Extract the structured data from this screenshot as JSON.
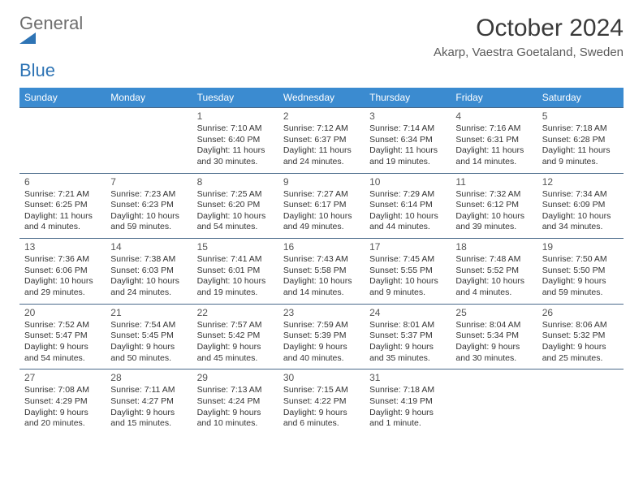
{
  "logo": {
    "part1": "General",
    "part2": "Blue"
  },
  "title": "October 2024",
  "location": "Akarp, Vaestra Goetaland, Sweden",
  "dayNames": [
    "Sunday",
    "Monday",
    "Tuesday",
    "Wednesday",
    "Thursday",
    "Friday",
    "Saturday"
  ],
  "colors": {
    "headerBg": "#3b8bd0",
    "headerText": "#ffffff",
    "rowBorder": "#4a6a8a",
    "logoGray": "#6e6e6e",
    "logoBlue": "#2e74b5"
  },
  "weeks": [
    [
      {
        "num": "",
        "sunrise": "",
        "sunset": "",
        "daylight": ""
      },
      {
        "num": "",
        "sunrise": "",
        "sunset": "",
        "daylight": ""
      },
      {
        "num": "1",
        "sunrise": "Sunrise: 7:10 AM",
        "sunset": "Sunset: 6:40 PM",
        "daylight": "Daylight: 11 hours and 30 minutes."
      },
      {
        "num": "2",
        "sunrise": "Sunrise: 7:12 AM",
        "sunset": "Sunset: 6:37 PM",
        "daylight": "Daylight: 11 hours and 24 minutes."
      },
      {
        "num": "3",
        "sunrise": "Sunrise: 7:14 AM",
        "sunset": "Sunset: 6:34 PM",
        "daylight": "Daylight: 11 hours and 19 minutes."
      },
      {
        "num": "4",
        "sunrise": "Sunrise: 7:16 AM",
        "sunset": "Sunset: 6:31 PM",
        "daylight": "Daylight: 11 hours and 14 minutes."
      },
      {
        "num": "5",
        "sunrise": "Sunrise: 7:18 AM",
        "sunset": "Sunset: 6:28 PM",
        "daylight": "Daylight: 11 hours and 9 minutes."
      }
    ],
    [
      {
        "num": "6",
        "sunrise": "Sunrise: 7:21 AM",
        "sunset": "Sunset: 6:25 PM",
        "daylight": "Daylight: 11 hours and 4 minutes."
      },
      {
        "num": "7",
        "sunrise": "Sunrise: 7:23 AM",
        "sunset": "Sunset: 6:23 PM",
        "daylight": "Daylight: 10 hours and 59 minutes."
      },
      {
        "num": "8",
        "sunrise": "Sunrise: 7:25 AM",
        "sunset": "Sunset: 6:20 PM",
        "daylight": "Daylight: 10 hours and 54 minutes."
      },
      {
        "num": "9",
        "sunrise": "Sunrise: 7:27 AM",
        "sunset": "Sunset: 6:17 PM",
        "daylight": "Daylight: 10 hours and 49 minutes."
      },
      {
        "num": "10",
        "sunrise": "Sunrise: 7:29 AM",
        "sunset": "Sunset: 6:14 PM",
        "daylight": "Daylight: 10 hours and 44 minutes."
      },
      {
        "num": "11",
        "sunrise": "Sunrise: 7:32 AM",
        "sunset": "Sunset: 6:12 PM",
        "daylight": "Daylight: 10 hours and 39 minutes."
      },
      {
        "num": "12",
        "sunrise": "Sunrise: 7:34 AM",
        "sunset": "Sunset: 6:09 PM",
        "daylight": "Daylight: 10 hours and 34 minutes."
      }
    ],
    [
      {
        "num": "13",
        "sunrise": "Sunrise: 7:36 AM",
        "sunset": "Sunset: 6:06 PM",
        "daylight": "Daylight: 10 hours and 29 minutes."
      },
      {
        "num": "14",
        "sunrise": "Sunrise: 7:38 AM",
        "sunset": "Sunset: 6:03 PM",
        "daylight": "Daylight: 10 hours and 24 minutes."
      },
      {
        "num": "15",
        "sunrise": "Sunrise: 7:41 AM",
        "sunset": "Sunset: 6:01 PM",
        "daylight": "Daylight: 10 hours and 19 minutes."
      },
      {
        "num": "16",
        "sunrise": "Sunrise: 7:43 AM",
        "sunset": "Sunset: 5:58 PM",
        "daylight": "Daylight: 10 hours and 14 minutes."
      },
      {
        "num": "17",
        "sunrise": "Sunrise: 7:45 AM",
        "sunset": "Sunset: 5:55 PM",
        "daylight": "Daylight: 10 hours and 9 minutes."
      },
      {
        "num": "18",
        "sunrise": "Sunrise: 7:48 AM",
        "sunset": "Sunset: 5:52 PM",
        "daylight": "Daylight: 10 hours and 4 minutes."
      },
      {
        "num": "19",
        "sunrise": "Sunrise: 7:50 AM",
        "sunset": "Sunset: 5:50 PM",
        "daylight": "Daylight: 9 hours and 59 minutes."
      }
    ],
    [
      {
        "num": "20",
        "sunrise": "Sunrise: 7:52 AM",
        "sunset": "Sunset: 5:47 PM",
        "daylight": "Daylight: 9 hours and 54 minutes."
      },
      {
        "num": "21",
        "sunrise": "Sunrise: 7:54 AM",
        "sunset": "Sunset: 5:45 PM",
        "daylight": "Daylight: 9 hours and 50 minutes."
      },
      {
        "num": "22",
        "sunrise": "Sunrise: 7:57 AM",
        "sunset": "Sunset: 5:42 PM",
        "daylight": "Daylight: 9 hours and 45 minutes."
      },
      {
        "num": "23",
        "sunrise": "Sunrise: 7:59 AM",
        "sunset": "Sunset: 5:39 PM",
        "daylight": "Daylight: 9 hours and 40 minutes."
      },
      {
        "num": "24",
        "sunrise": "Sunrise: 8:01 AM",
        "sunset": "Sunset: 5:37 PM",
        "daylight": "Daylight: 9 hours and 35 minutes."
      },
      {
        "num": "25",
        "sunrise": "Sunrise: 8:04 AM",
        "sunset": "Sunset: 5:34 PM",
        "daylight": "Daylight: 9 hours and 30 minutes."
      },
      {
        "num": "26",
        "sunrise": "Sunrise: 8:06 AM",
        "sunset": "Sunset: 5:32 PM",
        "daylight": "Daylight: 9 hours and 25 minutes."
      }
    ],
    [
      {
        "num": "27",
        "sunrise": "Sunrise: 7:08 AM",
        "sunset": "Sunset: 4:29 PM",
        "daylight": "Daylight: 9 hours and 20 minutes."
      },
      {
        "num": "28",
        "sunrise": "Sunrise: 7:11 AM",
        "sunset": "Sunset: 4:27 PM",
        "daylight": "Daylight: 9 hours and 15 minutes."
      },
      {
        "num": "29",
        "sunrise": "Sunrise: 7:13 AM",
        "sunset": "Sunset: 4:24 PM",
        "daylight": "Daylight: 9 hours and 10 minutes."
      },
      {
        "num": "30",
        "sunrise": "Sunrise: 7:15 AM",
        "sunset": "Sunset: 4:22 PM",
        "daylight": "Daylight: 9 hours and 6 minutes."
      },
      {
        "num": "31",
        "sunrise": "Sunrise: 7:18 AM",
        "sunset": "Sunset: 4:19 PM",
        "daylight": "Daylight: 9 hours and 1 minute."
      },
      {
        "num": "",
        "sunrise": "",
        "sunset": "",
        "daylight": ""
      },
      {
        "num": "",
        "sunrise": "",
        "sunset": "",
        "daylight": ""
      }
    ]
  ]
}
